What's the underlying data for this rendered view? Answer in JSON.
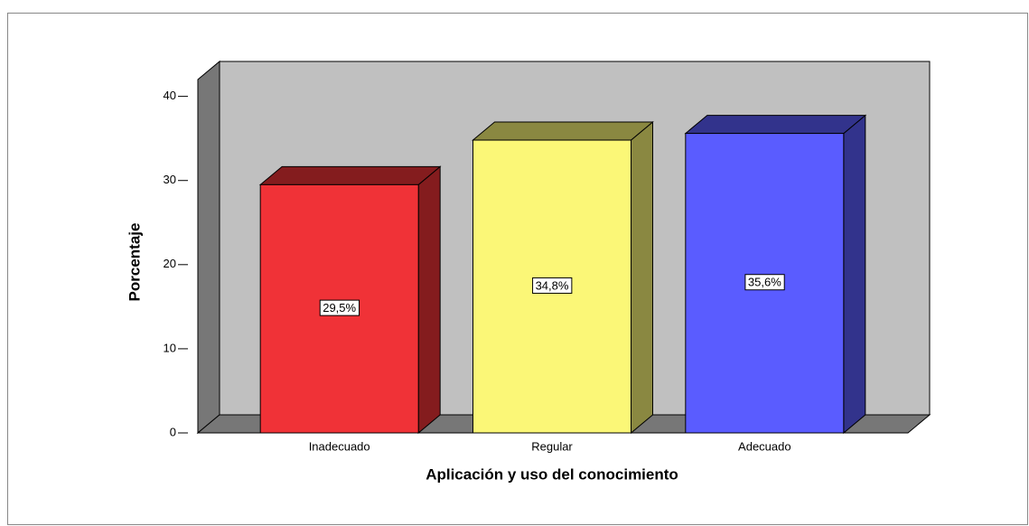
{
  "chart_data": {
    "type": "bar3d",
    "x_label": "Aplicación y uso del conocimiento",
    "y_label": "Porcentaje",
    "categories": [
      "Inadecuado",
      "Regular",
      "Adecuado"
    ],
    "values": [
      29.5,
      34.8,
      35.6
    ],
    "value_labels": [
      "29,5%",
      "34,8%",
      "35,6%"
    ],
    "colors": [
      "#f03237",
      "#fbf777",
      "#5a5cff"
    ],
    "ylim": [
      0,
      42
    ],
    "yticks": [
      0,
      10,
      20,
      30,
      40
    ]
  }
}
